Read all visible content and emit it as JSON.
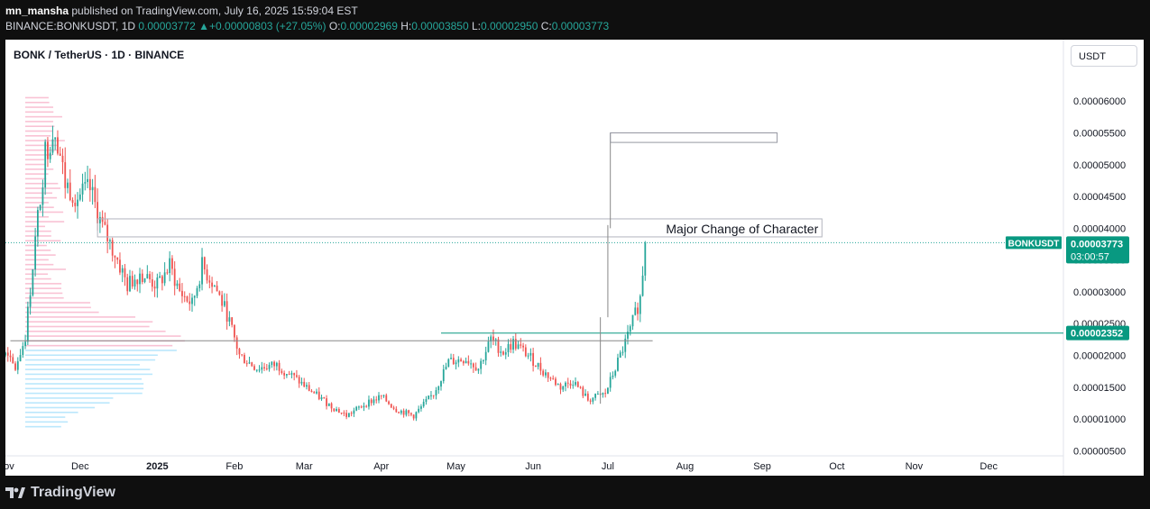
{
  "header": {
    "author": "mn_mansha",
    "published": "published on TradingView.com, July 16, 2025 15:59:04 EST",
    "symbol": "BINANCE:BONKUSDT, 1D",
    "last": "0.00003772",
    "change": "+0.00000803 (+27.05%)",
    "o_label": "O:",
    "o": "0.00002969",
    "h_label": "H:",
    "h": "0.00003850",
    "l_label": "L:",
    "l": "0.00002950",
    "c_label": "C:",
    "c": "0.00003773"
  },
  "chart_title": "BONK / TetherUS · 1D · BINANCE",
  "currency_button": "USDT",
  "annotation_label": "Major Change of Character",
  "price_tag": {
    "symbol": "BONKUSDT",
    "price": "0.00003773",
    "countdown": "03:00:57"
  },
  "line_tag": {
    "price": "0.00002352"
  },
  "footer": {
    "brand": "TradingView"
  },
  "colors": {
    "up": "#26a69a",
    "down": "#ef5350",
    "profile_pink": "#f48fb1",
    "profile_blue": "#81d4fa",
    "line_teal": "#089981"
  },
  "chart_data": {
    "type": "candlestick",
    "y_ticks": [
      "0.00006000",
      "0.00005500",
      "0.00005000",
      "0.00004500",
      "0.00004000",
      "0.00003500",
      "0.00003000",
      "0.00002500",
      "0.00002000",
      "0.00001500",
      "0.00001000",
      "0.00000500"
    ],
    "x_ticks": [
      "Nov",
      "Dec",
      "2025",
      "Feb",
      "Mar",
      "Apr",
      "May",
      "Jun",
      "Jul",
      "Aug",
      "Sep",
      "Oct",
      "Nov",
      "Dec"
    ],
    "ylim": [
      4.2e-06,
      6.4e-05
    ],
    "x_range": [
      "2024-11-01",
      "2025-12-31"
    ],
    "close_anchors": [
      [
        "2024-11-01",
        2e-05
      ],
      [
        "2024-11-05",
        1.8e-05
      ],
      [
        "2024-11-09",
        2.3e-05
      ],
      [
        "2024-11-13",
        3.8e-05
      ],
      [
        "2024-11-17",
        5.2e-05
      ],
      [
        "2024-11-21",
        5.6e-05
      ],
      [
        "2024-11-25",
        4.7e-05
      ],
      [
        "2024-11-30",
        4.5e-05
      ],
      [
        "2024-12-05",
        4.6e-05
      ],
      [
        "2024-12-10",
        4e-05
      ],
      [
        "2024-12-15",
        3.6e-05
      ],
      [
        "2024-12-20",
        3.1e-05
      ],
      [
        "2024-12-25",
        3.3e-05
      ],
      [
        "2025-01-01",
        3.1e-05
      ],
      [
        "2025-01-06",
        3.4e-05
      ],
      [
        "2025-01-10",
        3e-05
      ],
      [
        "2025-01-15",
        2.8e-05
      ],
      [
        "2025-01-19",
        3.4e-05
      ],
      [
        "2025-01-24",
        3.1e-05
      ],
      [
        "2025-01-29",
        2.65e-05
      ],
      [
        "2025-02-03",
        2e-05
      ],
      [
        "2025-02-10",
        1.8e-05
      ],
      [
        "2025-02-18",
        1.85e-05
      ],
      [
        "2025-02-25",
        1.65e-05
      ],
      [
        "2025-03-05",
        1.4e-05
      ],
      [
        "2025-03-12",
        1.2e-05
      ],
      [
        "2025-03-18",
        1.05e-05
      ],
      [
        "2025-03-26",
        1.25e-05
      ],
      [
        "2025-04-01",
        1.35e-05
      ],
      [
        "2025-04-07",
        1.15e-05
      ],
      [
        "2025-04-14",
        1.05e-05
      ],
      [
        "2025-04-22",
        1.4e-05
      ],
      [
        "2025-04-28",
        1.9e-05
      ],
      [
        "2025-05-05",
        1.95e-05
      ],
      [
        "2025-05-10",
        1.8e-05
      ],
      [
        "2025-05-15",
        2.25e-05
      ],
      [
        "2025-05-20",
        2.05e-05
      ],
      [
        "2025-05-24",
        2.2e-05
      ],
      [
        "2025-05-30",
        2e-05
      ],
      [
        "2025-06-05",
        1.75e-05
      ],
      [
        "2025-06-12",
        1.5e-05
      ],
      [
        "2025-06-17",
        1.6e-05
      ],
      [
        "2025-06-23",
        1.3e-05
      ],
      [
        "2025-06-30",
        1.4e-05
      ],
      [
        "2025-07-05",
        1.9e-05
      ],
      [
        "2025-07-10",
        2.4e-05
      ],
      [
        "2025-07-14",
        2.9e-05
      ],
      [
        "2025-07-16",
        3.77e-05
      ]
    ],
    "annotation": {
      "text": "Major Change of Character",
      "y": 4.02e-05,
      "from": "2024-12-08",
      "to": "2025-09-25"
    },
    "levels": [
      {
        "y": 2.23e-05,
        "from": "2024-11-03",
        "to": "2025-07-19",
        "color": "#888888"
      },
      {
        "y": 2.35e-05,
        "from": "2025-04-25",
        "to": "2025-12-31",
        "color": "#089981"
      }
    ]
  }
}
